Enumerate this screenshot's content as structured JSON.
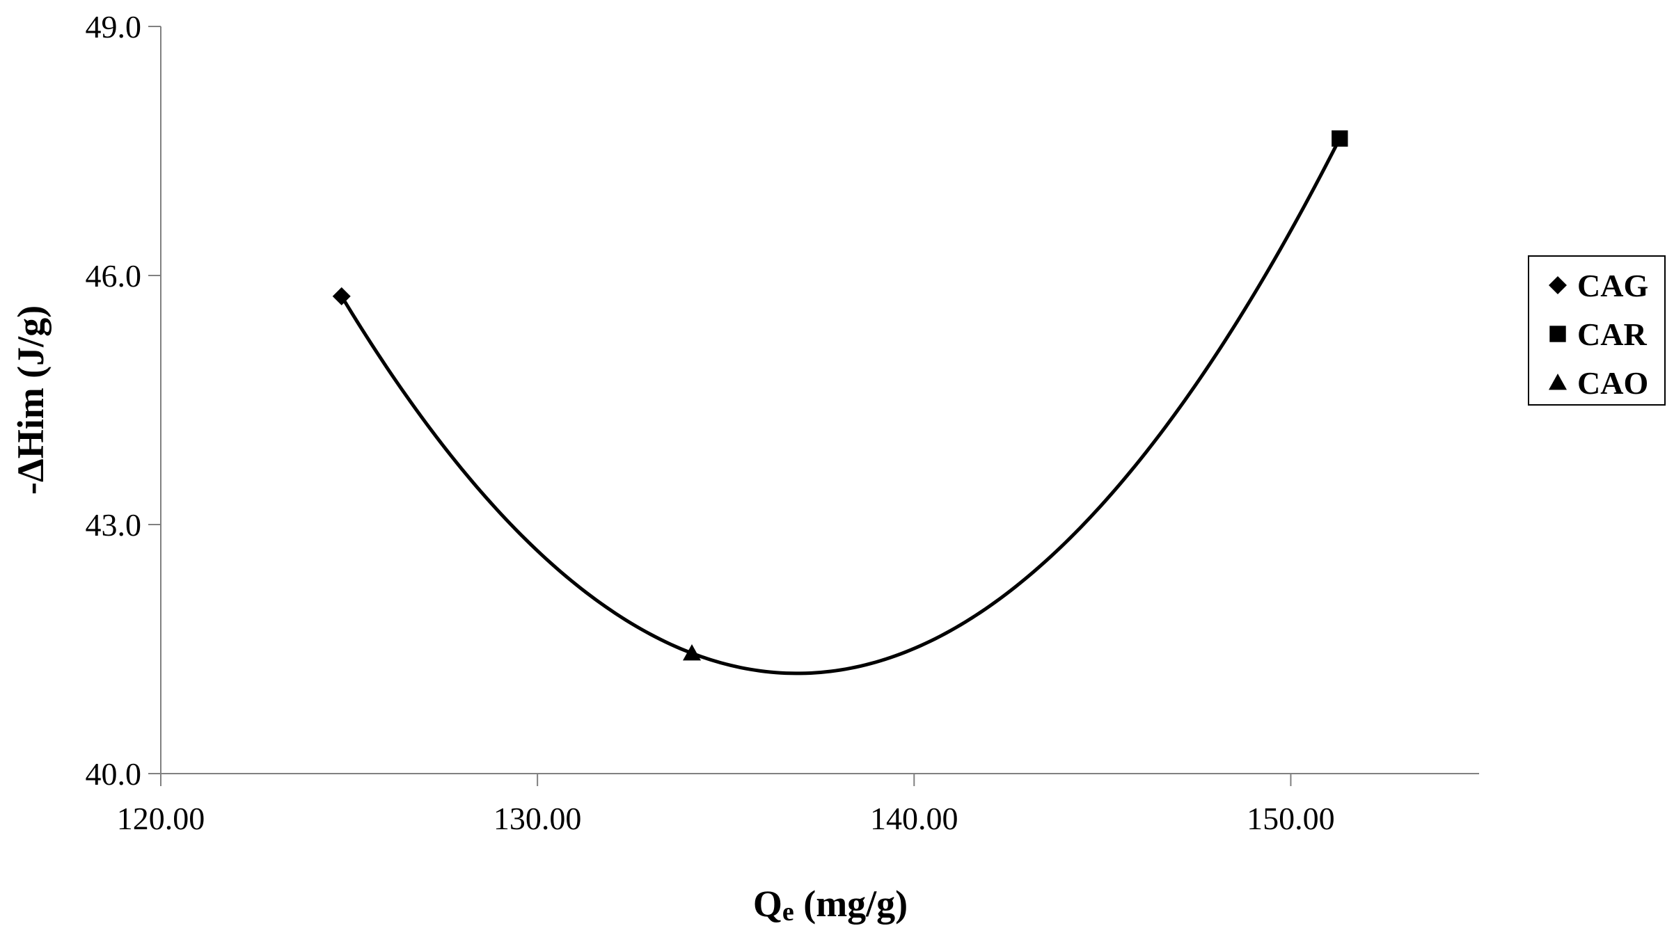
{
  "chart_data": {
    "type": "scatter",
    "title": "",
    "xlabel": "Q",
    "xlabel_sub": "e",
    "xlabel_unit": " (mg/g)",
    "ylabel": "-ΔHim (J/g)",
    "xlim": [
      120,
      155
    ],
    "ylim": [
      40,
      49
    ],
    "x_ticks": [
      120,
      130,
      140,
      150
    ],
    "x_tick_labels": [
      "120.00",
      "130.00",
      "140.00",
      "150.00"
    ],
    "y_ticks": [
      40,
      43,
      46,
      49
    ],
    "y_tick_labels": [
      "40.0",
      "43.0",
      "46.0",
      "49.0"
    ],
    "grid": false,
    "legend_position": "right",
    "series": [
      {
        "name": "CAG",
        "marker": "diamond",
        "x": [
          124.8
        ],
        "y": [
          45.75
        ]
      },
      {
        "name": "CAR",
        "marker": "square",
        "x": [
          151.3
        ],
        "y": [
          47.65
        ]
      },
      {
        "name": "CAO",
        "marker": "triangle",
        "x": [
          134.1
        ],
        "y": [
          41.45
        ]
      }
    ],
    "trendline": {
      "type": "polynomial",
      "order": 2,
      "color": "#000000"
    }
  }
}
